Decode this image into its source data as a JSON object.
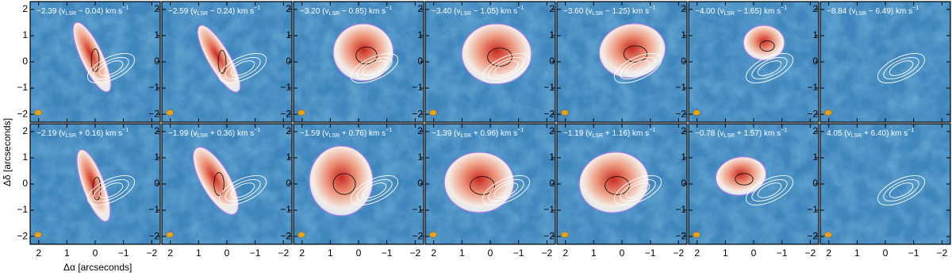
{
  "chart_data": {
    "type": "image",
    "xlabel": "Δα [arcseconds]",
    "ylabel": "Δδ [arcseconds]",
    "xlim": [
      2.3,
      -2.3
    ],
    "ylim": [
      -2.3,
      2.3
    ],
    "xticks": [
      2,
      1,
      0,
      {
        "value": -1,
        "label": "−1"
      },
      {
        "value": -2,
        "label": "−2"
      }
    ],
    "yticks": [
      2,
      1,
      0,
      {
        "value": -1,
        "label": "−1"
      },
      {
        "value": -2,
        "label": "−2"
      }
    ],
    "panels": [
      {
        "pre": "−2.39 (v",
        "sub": "LSR",
        "post": " − 0.04) km s",
        "sup": "−1"
      },
      {
        "pre": "−2.59 (v",
        "sub": "LSR",
        "post": " − 0.24) km s",
        "sup": "−1"
      },
      {
        "pre": "−3.20 (v",
        "sub": "LSR",
        "post": " − 0.85) km s",
        "sup": "−1"
      },
      {
        "pre": "−3.40 (v",
        "sub": "LSR",
        "post": " − 1.05) km s",
        "sup": "−1"
      },
      {
        "pre": "−3.60 (v",
        "sub": "LSR",
        "post": " − 1.25) km s",
        "sup": "−1"
      },
      {
        "pre": "−4.00 (v",
        "sub": "LSR",
        "post": " − 1.65) km s",
        "sup": "−1"
      },
      {
        "pre": "−8.84 (v",
        "sub": "LSR",
        "post": " − 6.49) km s",
        "sup": "−1"
      },
      {
        "pre": "−2.19 (v",
        "sub": "LSR",
        "post": " + 0.16) km s",
        "sup": "−1"
      },
      {
        "pre": "−1.99 (v",
        "sub": "LSR",
        "post": " + 0.36) km s",
        "sup": "−1"
      },
      {
        "pre": "−1.59 (v",
        "sub": "LSR",
        "post": " + 0.76) km s",
        "sup": "−1"
      },
      {
        "pre": "−1.39 (v",
        "sub": "LSR",
        "post": " + 0.96) km s",
        "sup": "−1"
      },
      {
        "pre": "−1.19 (v",
        "sub": "LSR",
        "post": " + 1.16) km s",
        "sup": "−1"
      },
      {
        "pre": "−0.78 (v",
        "sub": "LSR",
        "post": " + 1.57) km s",
        "sup": "−1"
      },
      {
        "pre": "4.05 (v",
        "sub": "LSR",
        "post": " + 6.40) km s",
        "sup": "−1"
      }
    ]
  }
}
